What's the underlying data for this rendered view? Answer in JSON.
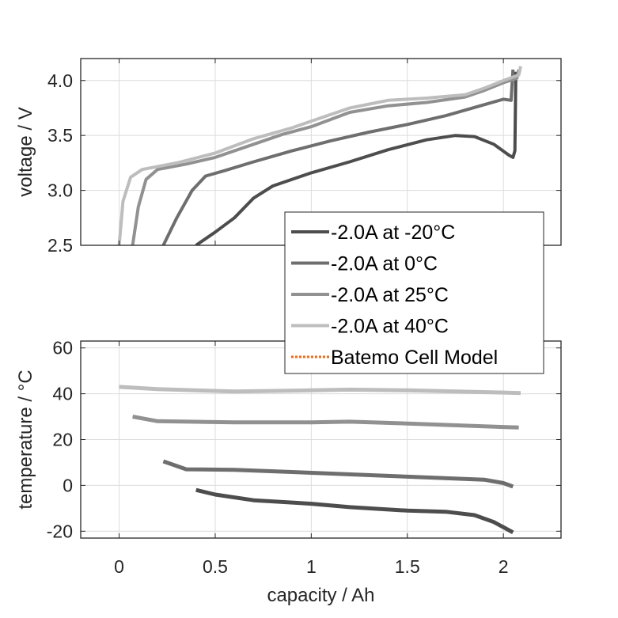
{
  "chart_data": [
    {
      "type": "line",
      "panel": "top",
      "title": "",
      "xlabel": "",
      "ylabel": "voltage / V",
      "xlim": [
        -0.2,
        2.3
      ],
      "ylim": [
        2.5,
        4.2
      ],
      "xticks": [
        0,
        0.5,
        1,
        1.5,
        2
      ],
      "yticks": [
        2.5,
        3.0,
        3.5,
        4.0
      ],
      "ytick_labels": [
        "2.5",
        "3.0",
        "3.5",
        "4.0"
      ],
      "grid": true,
      "series": [
        {
          "name": "-2.0A at -20°C",
          "color": "#4d4d4d",
          "x": [
            0.4,
            0.5,
            0.6,
            0.7,
            0.8,
            1.0,
            1.2,
            1.4,
            1.6,
            1.75,
            1.85,
            1.95,
            2.03,
            2.05,
            2.06,
            2.065
          ],
          "y": [
            2.5,
            2.62,
            2.75,
            2.93,
            3.04,
            3.16,
            3.26,
            3.37,
            3.46,
            3.5,
            3.49,
            3.42,
            3.32,
            3.3,
            3.36,
            4.08
          ]
        },
        {
          "name": "-2.0A at 0°C",
          "color": "#6e6e6e",
          "x": [
            0.23,
            0.3,
            0.38,
            0.45,
            0.55,
            0.7,
            0.9,
            1.1,
            1.3,
            1.5,
            1.7,
            1.9,
            2.0,
            2.04,
            2.05
          ],
          "y": [
            2.5,
            2.75,
            3.0,
            3.13,
            3.18,
            3.26,
            3.36,
            3.45,
            3.53,
            3.6,
            3.68,
            3.78,
            3.83,
            3.82,
            4.1
          ]
        },
        {
          "name": "-2.0A at 25°C",
          "color": "#919191",
          "x": [
            0.07,
            0.1,
            0.14,
            0.2,
            0.35,
            0.5,
            0.7,
            0.85,
            1.0,
            1.2,
            1.4,
            1.6,
            1.8,
            1.9,
            2.0,
            2.07,
            2.08
          ],
          "y": [
            2.5,
            2.85,
            3.1,
            3.19,
            3.24,
            3.3,
            3.42,
            3.51,
            3.58,
            3.71,
            3.77,
            3.8,
            3.85,
            3.91,
            3.98,
            4.02,
            4.1
          ]
        },
        {
          "name": "-2.0A at 40°C",
          "color": "#bdbdbd",
          "x": [
            0.0,
            0.02,
            0.06,
            0.12,
            0.3,
            0.5,
            0.7,
            0.9,
            1.0,
            1.2,
            1.4,
            1.6,
            1.8,
            1.9,
            2.0,
            2.08,
            2.09
          ],
          "y": [
            2.5,
            2.9,
            3.12,
            3.19,
            3.25,
            3.34,
            3.47,
            3.57,
            3.63,
            3.75,
            3.82,
            3.84,
            3.87,
            3.93,
            4.0,
            4.05,
            4.13
          ]
        }
      ]
    },
    {
      "type": "line",
      "panel": "bottom",
      "title": "",
      "xlabel": "capacity / Ah",
      "ylabel": "temperature / °C",
      "xlim": [
        -0.2,
        2.3
      ],
      "ylim": [
        -23,
        63
      ],
      "xticks": [
        0,
        0.5,
        1,
        1.5,
        2
      ],
      "xtick_labels": [
        "0",
        "0.5",
        "1",
        "1.5",
        "2"
      ],
      "yticks": [
        -20,
        0,
        20,
        40,
        60
      ],
      "ytick_labels": [
        "-20",
        "0",
        "20",
        "40",
        "60"
      ],
      "grid": true,
      "series": [
        {
          "name": "-2.0A at -20°C",
          "color": "#4d4d4d",
          "x": [
            0.4,
            0.5,
            0.7,
            1.0,
            1.2,
            1.5,
            1.7,
            1.85,
            1.95,
            2.05
          ],
          "y": [
            -2,
            -4,
            -6.5,
            -8,
            -9.5,
            -11,
            -11.5,
            -13,
            -16,
            -20.5
          ]
        },
        {
          "name": "-2.0A at 0°C",
          "color": "#6e6e6e",
          "x": [
            0.23,
            0.35,
            0.6,
            1.0,
            1.5,
            1.9,
            2.0,
            2.05
          ],
          "y": [
            10.5,
            7,
            6.8,
            5.5,
            3.8,
            2.5,
            1,
            -0.5
          ]
        },
        {
          "name": "-2.0A at 25°C",
          "color": "#919191",
          "x": [
            0.07,
            0.2,
            0.6,
            1.0,
            1.2,
            1.5,
            2.0,
            2.08
          ],
          "y": [
            30,
            28,
            27.5,
            27.5,
            27.8,
            27,
            25.5,
            25.3
          ]
        },
        {
          "name": "-2.0A at 40°C",
          "color": "#bdbdbd",
          "x": [
            0.0,
            0.2,
            0.6,
            1.0,
            1.2,
            1.5,
            2.0,
            2.09
          ],
          "y": [
            43,
            42,
            41,
            41.5,
            41.8,
            41.5,
            40.5,
            40.3
          ]
        }
      ]
    }
  ],
  "legend": {
    "placement": "center-right",
    "entries": [
      {
        "label": "-2.0A at -20°C",
        "color": "#4d4d4d",
        "style": "solid"
      },
      {
        "label": "-2.0A at 0°C",
        "color": "#6e6e6e",
        "style": "solid"
      },
      {
        "label": "-2.0A at 25°C",
        "color": "#919191",
        "style": "solid"
      },
      {
        "label": "-2.0A at 40°C",
        "color": "#bdbdbd",
        "style": "solid"
      },
      {
        "label": "Batemo Cell Model",
        "color": "#ef6c1a",
        "style": "dotted"
      }
    ]
  },
  "colors": {
    "axis": "#262626",
    "grid": "#dcdcdc"
  }
}
